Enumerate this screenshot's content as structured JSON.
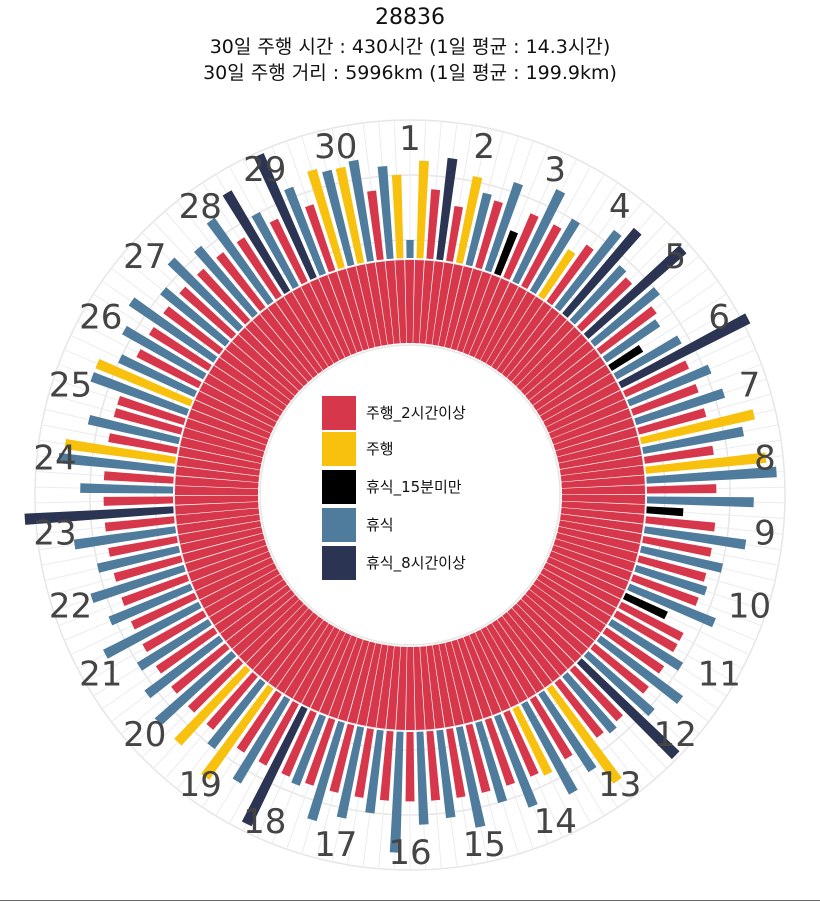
{
  "chart_data": {
    "type": "radial-bar",
    "title": "28836",
    "subtitle_1": "30일 주행 시간 : 430시간 (1일 평균 : 14.3시간)",
    "subtitle_2": "30일 주행 거리 : 5996km (1일 평균 : 199.9km)",
    "days": [
      "1",
      "2",
      "3",
      "4",
      "5",
      "6",
      "7",
      "8",
      "9",
      "10",
      "11",
      "12",
      "13",
      "14",
      "15",
      "16",
      "17",
      "18",
      "19",
      "20",
      "21",
      "22",
      "23",
      "24",
      "25",
      "26",
      "27",
      "28",
      "29",
      "30"
    ],
    "legend": [
      {
        "key": "drive2h",
        "label": "주행_2시간이상",
        "color": "#d7374a"
      },
      {
        "key": "drive",
        "label": "주행",
        "color": "#f8c10d"
      },
      {
        "key": "rest15",
        "label": "휴식_15분미만",
        "color": "#000000"
      },
      {
        "key": "rest",
        "label": "휴식",
        "color": "#4f7c9c"
      },
      {
        "key": "rest8h",
        "label": "휴식_8시간이상",
        "color": "#2b3553"
      }
    ],
    "legend_placement": "center",
    "grid": true,
    "segments_per_day": 5,
    "series": [
      {
        "day": "1",
        "segments": [
          [
            3,
            0.0
          ],
          [
            1,
            0.85
          ],
          [
            0,
            0.55
          ],
          [
            4,
            0.9
          ],
          [
            0,
            0.4
          ]
        ]
      },
      {
        "day": "2",
        "segments": [
          [
            1,
            0.75
          ],
          [
            3,
            0.6
          ],
          [
            0,
            0.55
          ],
          [
            3,
            0.8
          ],
          [
            2,
            0.3
          ]
        ]
      },
      {
        "day": "3",
        "segments": [
          [
            0,
            0.55
          ],
          [
            3,
            0.9
          ],
          [
            0,
            0.55
          ],
          [
            3,
            0.7
          ],
          [
            1,
            0.4
          ]
        ]
      },
      {
        "day": "4",
        "segments": [
          [
            0,
            0.55
          ],
          [
            3,
            0.85
          ],
          [
            4,
            1.0
          ],
          [
            3,
            0.6
          ],
          [
            0,
            0.55
          ]
        ]
      },
      {
        "day": "5",
        "segments": [
          [
            4,
            1.2
          ],
          [
            3,
            0.7
          ],
          [
            0,
            0.55
          ],
          [
            3,
            0.5
          ],
          [
            2,
            0.2
          ]
        ]
      },
      {
        "day": "6",
        "segments": [
          [
            3,
            0.6
          ],
          [
            4,
            1.35
          ],
          [
            0,
            0.55
          ],
          [
            3,
            0.75
          ],
          [
            0,
            0.55
          ]
        ]
      },
      {
        "day": "7",
        "segments": [
          [
            3,
            0.8
          ],
          [
            0,
            0.55
          ],
          [
            1,
            1.05
          ],
          [
            3,
            0.9
          ],
          [
            0,
            0.55
          ]
        ]
      },
      {
        "day": "8",
        "segments": [
          [
            1,
            1.1
          ],
          [
            3,
            1.2
          ],
          [
            0,
            0.55
          ],
          [
            3,
            0.95
          ],
          [
            2,
            0.2
          ]
        ]
      },
      {
        "day": "9",
        "segments": [
          [
            0,
            0.55
          ],
          [
            3,
            0.9
          ],
          [
            0,
            0.55
          ],
          [
            3,
            0.7
          ],
          [
            0,
            0.55
          ]
        ]
      },
      {
        "day": "10",
        "segments": [
          [
            3,
            0.6
          ],
          [
            0,
            0.55
          ],
          [
            3,
            0.8
          ],
          [
            2,
            0.3
          ],
          [
            0,
            0.55
          ]
        ]
      },
      {
        "day": "11",
        "segments": [
          [
            0,
            0.55
          ],
          [
            3,
            0.7
          ],
          [
            0,
            0.55
          ],
          [
            3,
            0.9
          ],
          [
            0,
            0.55
          ]
        ]
      },
      {
        "day": "12",
        "segments": [
          [
            3,
            0.75
          ],
          [
            4,
            1.25
          ],
          [
            0,
            0.55
          ],
          [
            3,
            0.6
          ],
          [
            0,
            0.55
          ]
        ]
      },
      {
        "day": "13",
        "segments": [
          [
            1,
            1.05
          ],
          [
            3,
            0.8
          ],
          [
            0,
            0.55
          ],
          [
            3,
            0.9
          ],
          [
            1,
            0.6
          ]
        ]
      },
      {
        "day": "14",
        "segments": [
          [
            0,
            0.55
          ],
          [
            3,
            0.85
          ],
          [
            0,
            0.55
          ],
          [
            3,
            0.7
          ],
          [
            0,
            0.55
          ]
        ]
      },
      {
        "day": "15",
        "segments": [
          [
            3,
            0.9
          ],
          [
            0,
            0.55
          ],
          [
            3,
            0.75
          ],
          [
            0,
            0.55
          ],
          [
            3,
            0.8
          ]
        ]
      },
      {
        "day": "16",
        "segments": [
          [
            0,
            0.55
          ],
          [
            3,
            1.1
          ],
          [
            0,
            0.55
          ],
          [
            3,
            0.7
          ],
          [
            0,
            0.55
          ]
        ]
      },
      {
        "day": "17",
        "segments": [
          [
            3,
            0.8
          ],
          [
            0,
            0.55
          ],
          [
            3,
            0.9
          ],
          [
            0,
            0.55
          ],
          [
            3,
            0.6
          ]
        ]
      },
      {
        "day": "18",
        "segments": [
          [
            0,
            0.55
          ],
          [
            4,
            1.2
          ],
          [
            0,
            0.55
          ],
          [
            3,
            0.85
          ],
          [
            0,
            0.55
          ]
        ]
      },
      {
        "day": "19",
        "segments": [
          [
            1,
            1.0
          ],
          [
            3,
            0.7
          ],
          [
            0,
            0.55
          ],
          [
            1,
            0.9
          ],
          [
            0,
            0.55
          ]
        ]
      },
      {
        "day": "20",
        "segments": [
          [
            3,
            0.9
          ],
          [
            0,
            0.55
          ],
          [
            3,
            0.8
          ],
          [
            0,
            0.55
          ],
          [
            3,
            0.7
          ]
        ]
      },
      {
        "day": "21",
        "segments": [
          [
            0,
            0.55
          ],
          [
            3,
            0.95
          ],
          [
            0,
            0.55
          ],
          [
            3,
            0.75
          ],
          [
            0,
            0.55
          ]
        ]
      },
      {
        "day": "22",
        "segments": [
          [
            3,
            0.85
          ],
          [
            0,
            0.55
          ],
          [
            3,
            0.7
          ],
          [
            0,
            0.55
          ],
          [
            3,
            0.9
          ]
        ]
      },
      {
        "day": "23",
        "segments": [
          [
            0,
            0.55
          ],
          [
            4,
            1.4
          ],
          [
            0,
            0.55
          ],
          [
            3,
            0.8
          ],
          [
            0,
            0.55
          ]
        ]
      },
      {
        "day": "24",
        "segments": [
          [
            3,
            1.05
          ],
          [
            1,
            1.0
          ],
          [
            0,
            0.55
          ],
          [
            3,
            0.8
          ],
          [
            0,
            0.55
          ]
        ]
      },
      {
        "day": "25",
        "segments": [
          [
            0,
            0.55
          ],
          [
            3,
            0.9
          ],
          [
            1,
            0.9
          ],
          [
            3,
            0.7
          ],
          [
            0,
            0.55
          ]
        ]
      },
      {
        "day": "26",
        "segments": [
          [
            3,
            0.8
          ],
          [
            0,
            0.55
          ],
          [
            3,
            0.9
          ],
          [
            0,
            0.55
          ],
          [
            3,
            0.7
          ]
        ]
      },
      {
        "day": "27",
        "segments": [
          [
            0,
            0.55
          ],
          [
            3,
            0.85
          ],
          [
            0,
            0.55
          ],
          [
            3,
            0.75
          ],
          [
            0,
            0.55
          ]
        ]
      },
      {
        "day": "28",
        "segments": [
          [
            3,
            0.9
          ],
          [
            0,
            0.55
          ],
          [
            4,
            1.05
          ],
          [
            3,
            0.7
          ],
          [
            0,
            0.55
          ]
        ]
      },
      {
        "day": "29",
        "segments": [
          [
            4,
            1.25
          ],
          [
            3,
            0.8
          ],
          [
            0,
            0.55
          ],
          [
            1,
            0.9
          ],
          [
            3,
            0.85
          ]
        ]
      },
      {
        "day": "30",
        "segments": [
          [
            1,
            0.85
          ],
          [
            3,
            0.9
          ],
          [
            0,
            0.55
          ],
          [
            3,
            0.8
          ],
          [
            1,
            0.7
          ]
        ]
      }
    ]
  }
}
